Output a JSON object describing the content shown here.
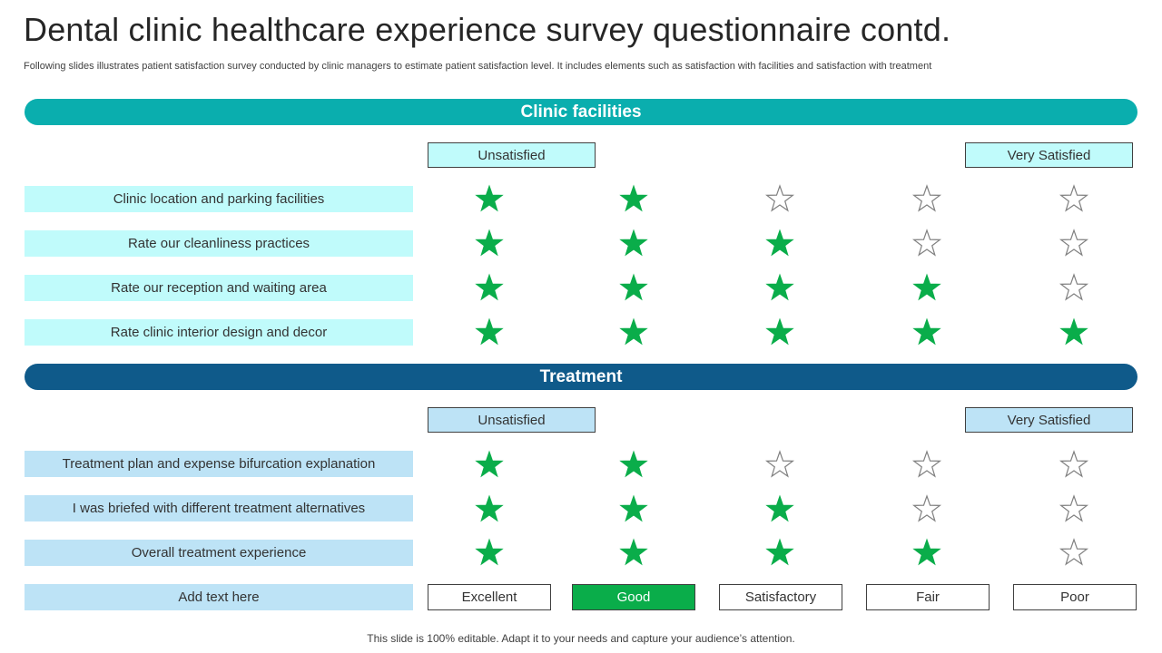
{
  "title": "Dental clinic healthcare experience survey questionnaire contd.",
  "subtitle": "Following slides illustrates patient satisfaction survey conducted by clinic managers to estimate patient satisfaction level. It includes elements such as satisfaction with facilities and satisfaction with treatment",
  "colors": {
    "teal": "#0aaeae",
    "navy": "#0f5a8a",
    "star_filled": "#0aad4a",
    "star_empty_stroke": "#808080",
    "cyan_fill": "#c0fbfb",
    "blue_fill": "#bde3f6"
  },
  "sections": [
    {
      "heading": "Clinic facilities",
      "scale_low": "Unsatisfied",
      "scale_high": "Very Satisfied",
      "rows": [
        {
          "label": "Clinic location and parking facilities",
          "rating": 2
        },
        {
          "label": "Rate our cleanliness practices",
          "rating": 3
        },
        {
          "label": "Rate our reception and waiting area",
          "rating": 4
        },
        {
          "label": "Rate clinic interior design and decor",
          "rating": 5
        }
      ]
    },
    {
      "heading": "Treatment",
      "scale_low": "Unsatisfied",
      "scale_high": "Very Satisfied",
      "rows": [
        {
          "label": "Treatment plan and expense bifurcation explanation",
          "rating": 2
        },
        {
          "label": "I was briefed with different treatment alternatives",
          "rating": 3
        },
        {
          "label": "Overall treatment experience",
          "rating": 4
        }
      ]
    }
  ],
  "max_rating": 5,
  "extra_label": "Add text here",
  "legend": [
    "Excellent",
    "Good",
    "Satisfactory",
    "Fair",
    "Poor"
  ],
  "legend_selected": "Good",
  "footer": "This slide is 100% editable. Adapt it to your needs and capture your audience’s attention.",
  "icons": {
    "star": "star-icon",
    "star_outline": "star-outline-icon"
  }
}
